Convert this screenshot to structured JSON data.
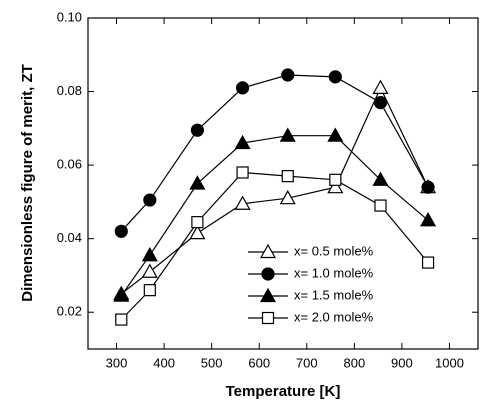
{
  "chart_data": {
    "type": "line",
    "x_label": "Temperature [K]",
    "y_label": "Dimensionless figure of merit, ZT",
    "x": [
      310,
      370,
      470,
      565,
      660,
      760,
      855,
      955
    ],
    "series": [
      {
        "name": "x= 0.5 mole%",
        "color": "#000000",
        "marker": "triangle",
        "filled": false,
        "values": [
          0.025,
          0.031,
          0.0415,
          0.0495,
          0.051,
          0.054,
          0.081,
          0.054
        ]
      },
      {
        "name": "x= 1.0 mole%",
        "color": "#000000",
        "marker": "circle",
        "filled": true,
        "values": [
          0.042,
          0.0505,
          0.0695,
          0.081,
          0.0845,
          0.084,
          0.077,
          0.054
        ]
      },
      {
        "name": "x= 1.5 mole%",
        "color": "#000000",
        "marker": "triangle",
        "filled": true,
        "values": [
          0.0245,
          0.0355,
          0.055,
          0.066,
          0.068,
          0.068,
          0.056,
          0.045
        ]
      },
      {
        "name": "x= 2.0 mole%",
        "color": "#000000",
        "marker": "square",
        "filled": false,
        "values": [
          0.018,
          0.026,
          0.0445,
          0.058,
          0.057,
          0.056,
          0.049,
          0.0335
        ]
      }
    ],
    "xlim": [
      240,
      1060
    ],
    "xticks": [
      300,
      400,
      500,
      600,
      700,
      800,
      900,
      1000
    ],
    "ylim": [
      0.01,
      0.1
    ],
    "yticks": [
      0.02,
      0.04,
      0.06,
      0.08,
      {
        "value": 0.1,
        "label": "0.10"
      }
    ],
    "grid": false,
    "legend": "lower-center"
  }
}
